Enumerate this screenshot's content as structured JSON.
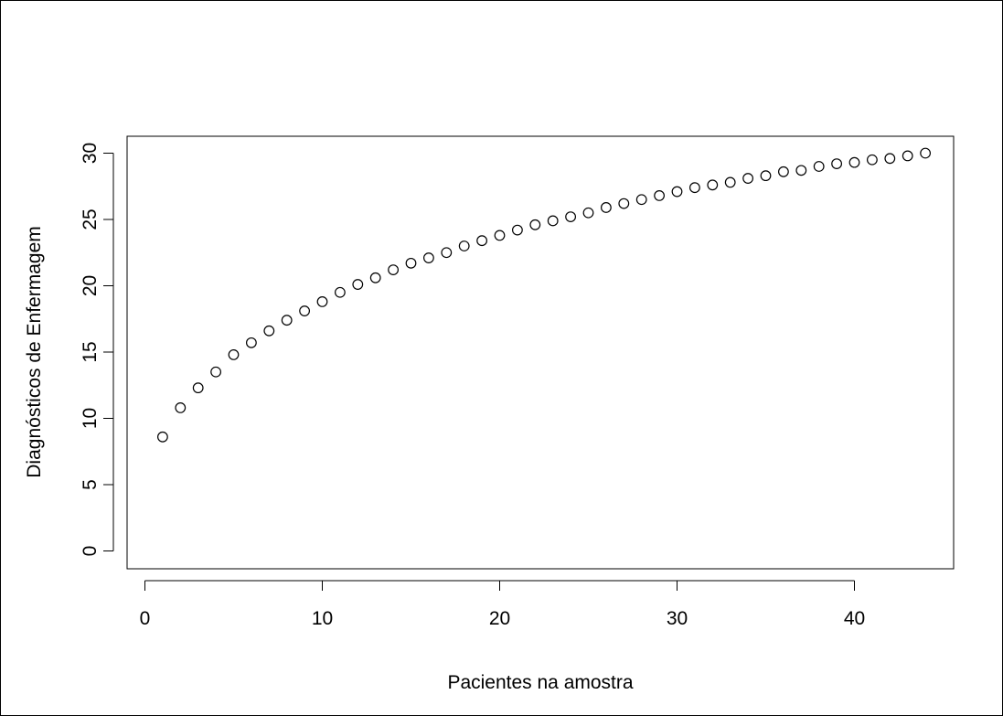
{
  "chart_data": {
    "type": "scatter",
    "title": "",
    "xlabel": "Pacientes na amostra",
    "ylabel": "Diagnósticos de Enfermagem",
    "xlim": [
      0,
      45
    ],
    "ylim": [
      -1,
      31
    ],
    "x_ticks": [
      0,
      10,
      20,
      30,
      40
    ],
    "x_tick_labels": [
      "0",
      "10",
      "20",
      "30",
      "40"
    ],
    "y_ticks": [
      0,
      5,
      10,
      15,
      20,
      25,
      30
    ],
    "y_tick_labels": [
      "0",
      "5",
      "10",
      "15",
      "20",
      "25",
      "30"
    ],
    "grid": false,
    "legend": "none",
    "marker": "open-circle",
    "series": [
      {
        "x": [
          1,
          2,
          3,
          4,
          5,
          6,
          7,
          8,
          9,
          10,
          11,
          12,
          13,
          14,
          15,
          16,
          17,
          18,
          19,
          20,
          21,
          22,
          23,
          24,
          25,
          26,
          27,
          28,
          29,
          30,
          31,
          32,
          33,
          34,
          35,
          36,
          37,
          38,
          39,
          40,
          41,
          42,
          43,
          44
        ],
        "values": [
          8.6,
          10.8,
          12.3,
          13.5,
          14.8,
          15.7,
          16.6,
          17.4,
          18.1,
          18.8,
          19.5,
          20.1,
          20.6,
          21.2,
          21.7,
          22.1,
          22.5,
          23.0,
          23.4,
          23.8,
          24.2,
          24.6,
          24.9,
          25.2,
          25.5,
          25.9,
          26.2,
          26.5,
          26.8,
          27.1,
          27.4,
          27.6,
          27.8,
          28.1,
          28.3,
          28.6,
          28.7,
          29.0,
          29.2,
          29.3,
          29.5,
          29.6,
          29.8,
          30.0
        ]
      }
    ]
  }
}
